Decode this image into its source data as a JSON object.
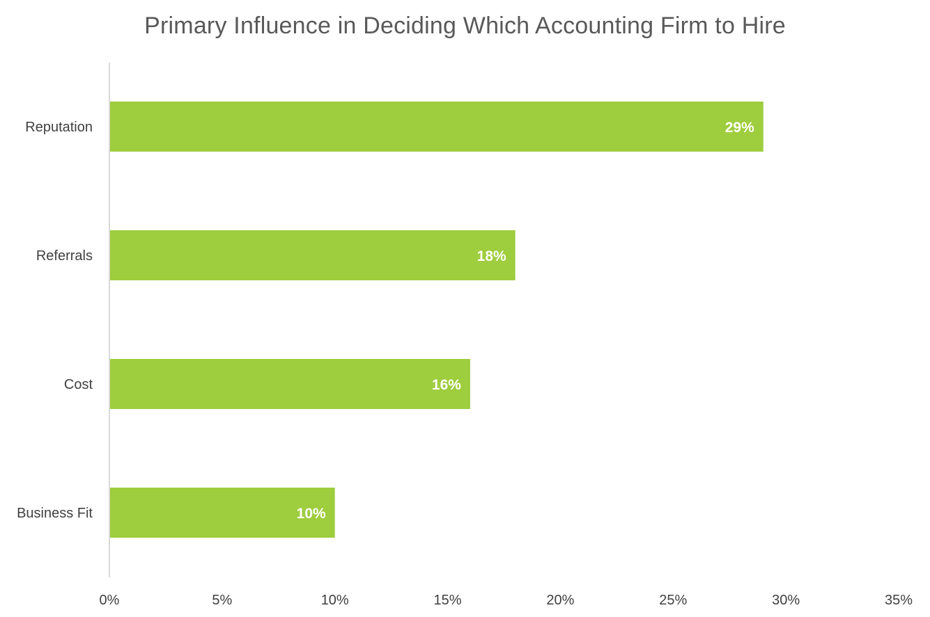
{
  "chart_data": {
    "type": "bar",
    "orientation": "horizontal",
    "title": "Primary Influence in Deciding Which Accounting Firm to Hire",
    "categories": [
      "Reputation",
      "Referrals",
      "Cost",
      "Business Fit"
    ],
    "values": [
      29,
      18,
      16,
      10
    ],
    "data_labels": [
      "29%",
      "18%",
      "16%",
      "10%"
    ],
    "xlim": [
      0,
      35
    ],
    "x_ticks": [
      0,
      5,
      10,
      15,
      20,
      25,
      30,
      35
    ],
    "x_tick_labels": [
      "0%",
      "5%",
      "10%",
      "15%",
      "20%",
      "25%",
      "30%",
      "35%"
    ],
    "bar_color": "#9ECD3E",
    "grid": false,
    "legend": "none"
  }
}
